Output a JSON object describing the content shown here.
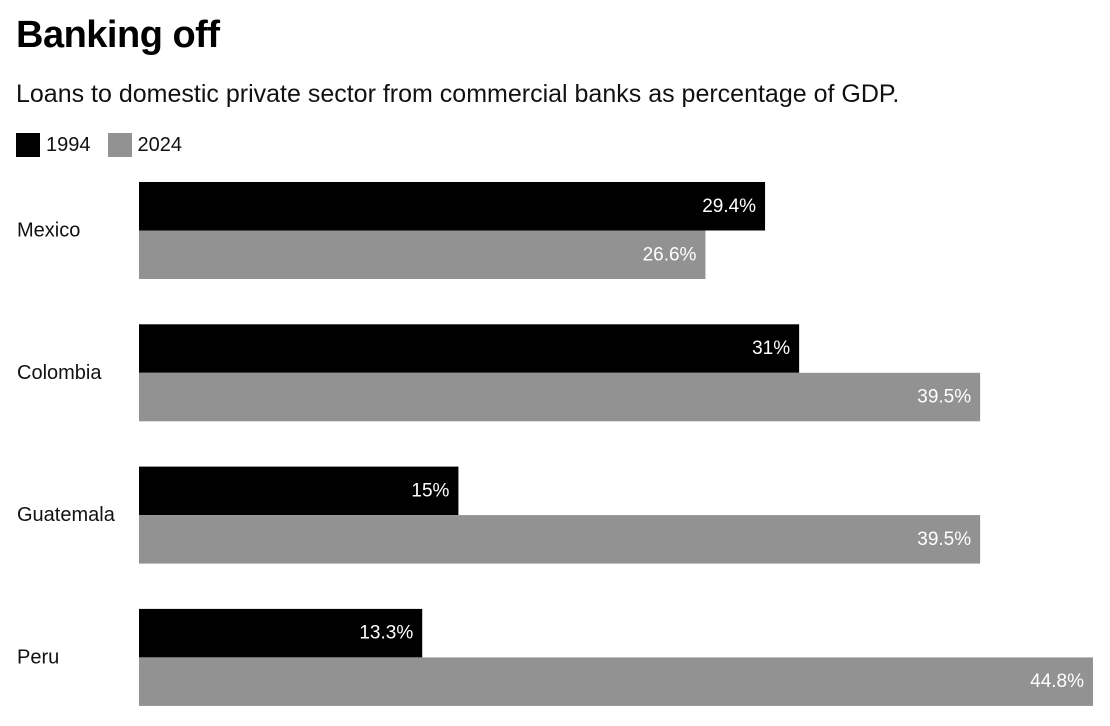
{
  "chart_data": {
    "type": "bar",
    "orientation": "horizontal",
    "title": "Banking off",
    "subtitle": "Loans to domestic private sector from commercial banks as percentage of GDP.",
    "categories": [
      "Mexico",
      "Colombia",
      "Guatemala",
      "Peru"
    ],
    "series": [
      {
        "name": "1994",
        "color": "#000000",
        "values": [
          29.4,
          31,
          15,
          13.3
        ],
        "labels": [
          "29.4%",
          "31%",
          "15%",
          "13.3%"
        ]
      },
      {
        "name": "2024",
        "color": "#929292",
        "values": [
          26.6,
          39.5,
          39.5,
          44.8
        ],
        "labels": [
          "26.6%",
          "39.5%",
          "39.5%",
          "44.8%"
        ]
      }
    ],
    "xlim": [
      0,
      44.8
    ],
    "grid": false,
    "legend": "top-left"
  }
}
